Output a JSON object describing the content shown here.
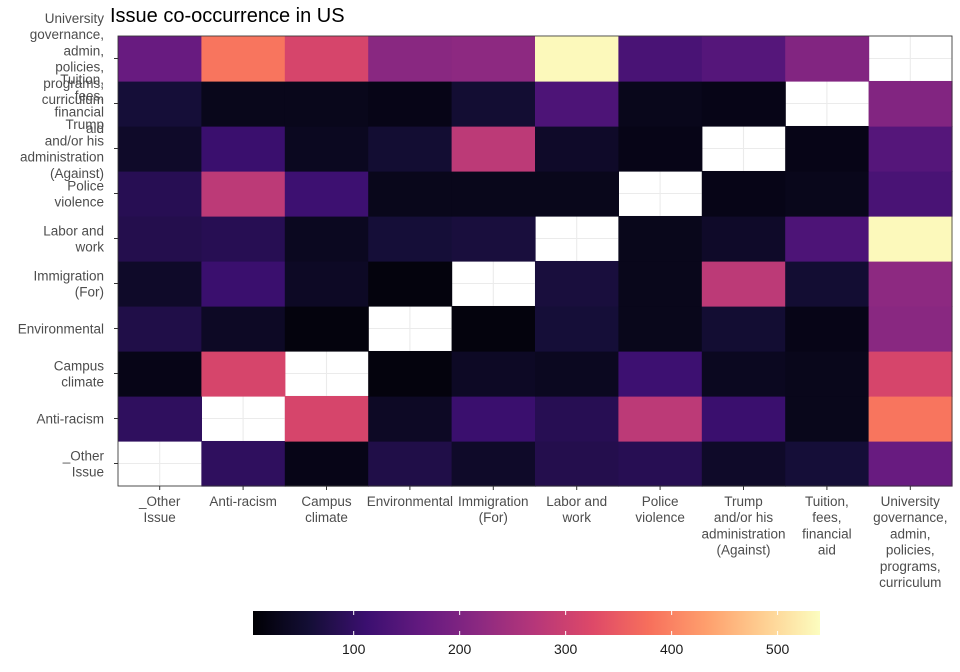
{
  "chart_data": {
    "type": "heatmap",
    "title": "Issue co-occurrence in US",
    "xlabel": "",
    "ylabel": "",
    "categories": [
      "_Other Issue",
      "Anti-racism",
      "Campus climate",
      "Environmental",
      "Immigration (For)",
      "Labor and work",
      "Police violence",
      "Trump and/or his administration (Against)",
      "Tuition, fees, financial aid",
      "University governance, admin, policies, programs, curriculum"
    ],
    "x_tick_lines": [
      [
        "_Other",
        "Issue"
      ],
      [
        "Anti-racism"
      ],
      [
        "Campus",
        "climate"
      ],
      [
        "Environmental"
      ],
      [
        "Immigration",
        "(For)"
      ],
      [
        "Labor and",
        "work"
      ],
      [
        "Police",
        "violence"
      ],
      [
        "Trump",
        "and/or his",
        "administration",
        "(Against)"
      ],
      [
        "Tuition,",
        "fees,",
        "financial",
        "aid"
      ],
      [
        "University",
        "governance,",
        "admin,",
        "policies,",
        "programs,",
        "curriculum"
      ]
    ],
    "y_tick_lines": [
      [
        "_Other",
        "Issue"
      ],
      [
        "Anti-racism"
      ],
      [
        "Campus",
        "climate"
      ],
      [
        "Environmental"
      ],
      [
        "Immigration",
        "(For)"
      ],
      [
        "Labor and",
        "work"
      ],
      [
        "Police",
        "violence"
      ],
      [
        "Trump",
        "and/or his",
        "administration",
        "(Against)"
      ],
      [
        "Tuition,",
        "fees,",
        "financial",
        "aid"
      ],
      [
        "University",
        "governance,",
        "admin,",
        "policies,",
        "programs,",
        "curriculum"
      ]
    ],
    "matrix": [
      [
        null,
        95,
        25,
        75,
        45,
        80,
        85,
        45,
        60,
        170
      ],
      [
        95,
        null,
        315,
        40,
        110,
        85,
        280,
        110,
        30,
        385
      ],
      [
        25,
        315,
        null,
        15,
        40,
        35,
        115,
        35,
        30,
        315
      ],
      [
        75,
        40,
        15,
        null,
        15,
        60,
        30,
        55,
        25,
        215
      ],
      [
        45,
        110,
        40,
        15,
        null,
        65,
        30,
        280,
        55,
        220
      ],
      [
        80,
        85,
        35,
        60,
        65,
        null,
        30,
        45,
        135,
        535
      ],
      [
        85,
        280,
        115,
        30,
        30,
        30,
        null,
        25,
        30,
        130
      ],
      [
        45,
        110,
        35,
        55,
        280,
        45,
        25,
        null,
        25,
        145
      ],
      [
        60,
        30,
        30,
        25,
        55,
        135,
        30,
        25,
        null,
        205
      ],
      [
        170,
        385,
        315,
        215,
        220,
        535,
        130,
        145,
        205,
        null
      ]
    ],
    "colorscale": "magma",
    "color_range": [
      5,
      540
    ],
    "legend": {
      "position": "bottom",
      "ticks": [
        100,
        200,
        300,
        400,
        500
      ],
      "tick_labels": [
        "100",
        "200",
        "300",
        "400",
        "500"
      ]
    },
    "grid": true,
    "missing_color": "#ffffff"
  }
}
